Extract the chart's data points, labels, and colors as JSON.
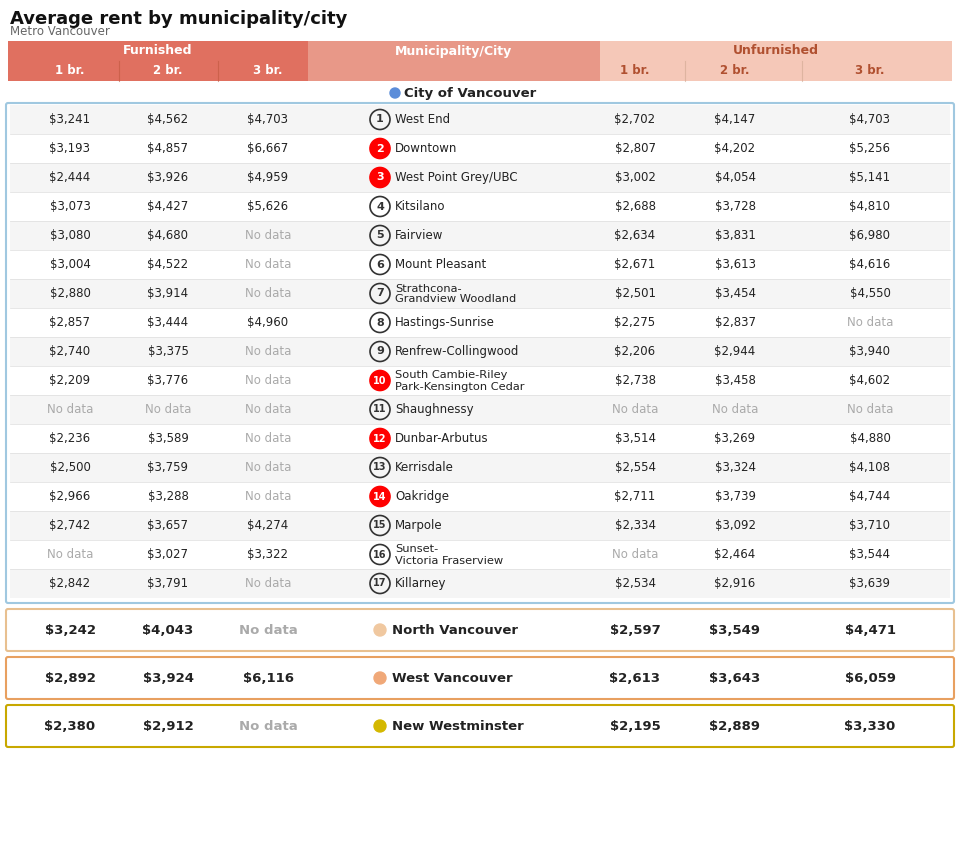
{
  "title": "Average rent by municipality/city",
  "subtitle": "Metro Vancouver",
  "header_furnished": "Furnished",
  "header_unfurnished": "Unfurnished",
  "header_city": "Municipality/City",
  "city_of_vancouver_label": "City of Vancouver",
  "city_of_vancouver_dot_color": "#5b8dd9",
  "rows": [
    {
      "num": "1",
      "f1": "$3,241",
      "f2": "$4,562",
      "f3": "$4,703",
      "u1": "$2,702",
      "u2": "$4,147",
      "u3": "$4,703",
      "num_color": "black",
      "name_lines": [
        "West End"
      ]
    },
    {
      "num": "2",
      "f1": "$3,193",
      "f2": "$4,857",
      "f3": "$6,667",
      "u1": "$2,807",
      "u2": "$4,202",
      "u3": "$5,256",
      "num_color": "red",
      "name_lines": [
        "Downtown"
      ]
    },
    {
      "num": "3",
      "f1": "$2,444",
      "f2": "$3,926",
      "f3": "$4,959",
      "u1": "$3,002",
      "u2": "$4,054",
      "u3": "$5,141",
      "num_color": "red",
      "name_lines": [
        "West Point Grey/UBC"
      ]
    },
    {
      "num": "4",
      "f1": "$3,073",
      "f2": "$4,427",
      "f3": "$5,626",
      "u1": "$2,688",
      "u2": "$3,728",
      "u3": "$4,810",
      "num_color": "black",
      "name_lines": [
        "Kitsilano"
      ]
    },
    {
      "num": "5",
      "f1": "$3,080",
      "f2": "$4,680",
      "f3": "No data",
      "u1": "$2,634",
      "u2": "$3,831",
      "u3": "$6,980",
      "num_color": "black",
      "name_lines": [
        "Fairview"
      ]
    },
    {
      "num": "6",
      "f1": "$3,004",
      "f2": "$4,522",
      "f3": "No data",
      "u1": "$2,671",
      "u2": "$3,613",
      "u3": "$4,616",
      "num_color": "black",
      "name_lines": [
        "Mount Pleasant"
      ]
    },
    {
      "num": "7",
      "f1": "$2,880",
      "f2": "$3,914",
      "f3": "No data",
      "u1": "$2,501",
      "u2": "$3,454",
      "u3": "$4,550",
      "num_color": "black",
      "name_lines": [
        "Strathcona-",
        "Grandview Woodland"
      ]
    },
    {
      "num": "8",
      "f1": "$2,857",
      "f2": "$3,444",
      "f3": "$4,960",
      "u1": "$2,275",
      "u2": "$2,837",
      "u3": "No data",
      "num_color": "black",
      "name_lines": [
        "Hastings-Sunrise"
      ]
    },
    {
      "num": "9",
      "f1": "$2,740",
      "f2": "$3,375",
      "f3": "No data",
      "u1": "$2,206",
      "u2": "$2,944",
      "u3": "$3,940",
      "num_color": "black",
      "name_lines": [
        "Renfrew-Collingwood"
      ]
    },
    {
      "num": "10",
      "f1": "$2,209",
      "f2": "$3,776",
      "f3": "No data",
      "u1": "$2,738",
      "u2": "$3,458",
      "u3": "$4,602",
      "num_color": "red",
      "name_lines": [
        "South Cambie-Riley",
        "Park-Kensington Cedar"
      ]
    },
    {
      "num": "11",
      "f1": "No data",
      "f2": "No data",
      "f3": "No data",
      "u1": "No data",
      "u2": "No data",
      "u3": "No data",
      "num_color": "black",
      "name_lines": [
        "Shaughnessy"
      ]
    },
    {
      "num": "12",
      "f1": "$2,236",
      "f2": "$3,589",
      "f3": "No data",
      "u1": "$3,514",
      "u2": "$3,269",
      "u3": "$4,880",
      "num_color": "red",
      "name_lines": [
        "Dunbar-Arbutus"
      ]
    },
    {
      "num": "13",
      "f1": "$2,500",
      "f2": "$3,759",
      "f3": "No data",
      "u1": "$2,554",
      "u2": "$3,324",
      "u3": "$4,108",
      "num_color": "black",
      "name_lines": [
        "Kerrisdale"
      ]
    },
    {
      "num": "14",
      "f1": "$2,966",
      "f2": "$3,288",
      "f3": "No data",
      "u1": "$2,711",
      "u2": "$3,739",
      "u3": "$4,744",
      "num_color": "red",
      "name_lines": [
        "Oakridge"
      ]
    },
    {
      "num": "15",
      "f1": "$2,742",
      "f2": "$3,657",
      "f3": "$4,274",
      "u1": "$2,334",
      "u2": "$3,092",
      "u3": "$3,710",
      "num_color": "black",
      "name_lines": [
        "Marpole"
      ]
    },
    {
      "num": "16",
      "f1": "No data",
      "f2": "$3,027",
      "f3": "$3,322",
      "u1": "No data",
      "u2": "$2,464",
      "u3": "$3,544",
      "num_color": "black",
      "name_lines": [
        "Sunset-",
        "Victoria Fraserview"
      ]
    },
    {
      "num": "17",
      "f1": "$2,842",
      "f2": "$3,791",
      "f3": "No data",
      "u1": "$2,534",
      "u2": "$2,916",
      "u3": "$3,639",
      "num_color": "black",
      "name_lines": [
        "Killarney"
      ]
    }
  ],
  "city_rows": [
    {
      "name": "North Vancouver",
      "f1": "$3,242",
      "f2": "$4,043",
      "f3": "No data",
      "u1": "$2,597",
      "u2": "$3,549",
      "u3": "$4,471",
      "dot_color": "#f0c8a0",
      "border_color": "#e8c090"
    },
    {
      "name": "West Vancouver",
      "f1": "$2,892",
      "f2": "$3,924",
      "f3": "$6,116",
      "u1": "$2,613",
      "u2": "$3,643",
      "u3": "$6,059",
      "dot_color": "#f0a878",
      "border_color": "#e8a060"
    },
    {
      "name": "New Westminster",
      "f1": "$2,380",
      "f2": "$2,912",
      "f3": "No data",
      "u1": "$2,195",
      "u2": "$2,889",
      "u3": "$3,330",
      "dot_color": "#d4b800",
      "border_color": "#c8a800"
    }
  ],
  "header_bg_furnished": "#e07060",
  "header_bg_city": "#e89888",
  "header_bg_unfurnished": "#f5c8b8",
  "row_bg_odd": "#f5f5f5",
  "row_bg_even": "#ffffff",
  "vancouver_box_border": "#a0c8e0",
  "bg_color": "#ffffff",
  "text_color": "#222222",
  "nodata_color": "#aaaaaa"
}
